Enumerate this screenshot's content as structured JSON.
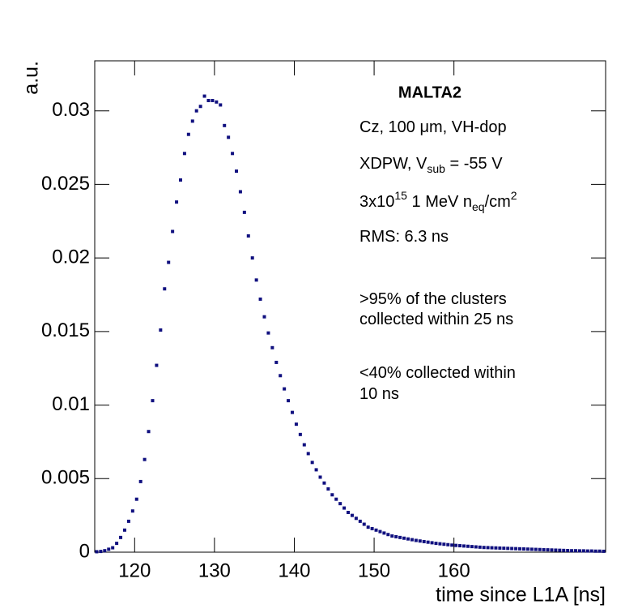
{
  "chart_data": {
    "type": "scatter",
    "x_label": "time since L1A [ns]",
    "y_label": "a.u.",
    "color": "#10107f",
    "xlim": [
      115,
      179
    ],
    "ylim": [
      0,
      0.0334
    ],
    "xticks": [
      120,
      130,
      140,
      150,
      160
    ],
    "yticks": [
      0,
      0.005,
      0.01,
      0.015,
      0.02,
      0.025,
      0.03
    ],
    "x": [
      115.25,
      115.75,
      116.25,
      116.75,
      117.25,
      117.75,
      118.25,
      118.75,
      119.25,
      119.75,
      120.25,
      120.75,
      121.25,
      121.75,
      122.25,
      122.75,
      123.25,
      123.75,
      124.25,
      124.75,
      125.25,
      125.75,
      126.25,
      126.75,
      127.25,
      127.75,
      128.25,
      128.75,
      129.25,
      129.75,
      130.25,
      130.75,
      131.25,
      131.75,
      132.25,
      132.75,
      133.25,
      133.75,
      134.25,
      134.75,
      135.25,
      135.75,
      136.25,
      136.75,
      137.25,
      137.75,
      138.25,
      138.75,
      139.25,
      139.75,
      140.25,
      140.75,
      141.25,
      141.75,
      142.25,
      142.75,
      143.25,
      143.75,
      144.25,
      144.75,
      145.25,
      145.75,
      146.25,
      146.75,
      147.25,
      147.75,
      148.25,
      148.75,
      149.25,
      149.75,
      150.25,
      150.75,
      151.25,
      151.75,
      152.25,
      152.75,
      153.25,
      153.75,
      154.25,
      154.75,
      155.25,
      155.75,
      156.25,
      156.75,
      157.25,
      157.75,
      158.25,
      158.75,
      159.25,
      159.75,
      160.25,
      160.75,
      161.25,
      161.75,
      162.25,
      162.75,
      163.25,
      163.75,
      164.25,
      164.75,
      165.25,
      165.75,
      166.25,
      166.75,
      167.25,
      167.75,
      168.25,
      168.75,
      169.25,
      169.75,
      170.25,
      170.75,
      171.25,
      171.75,
      172.25,
      172.75,
      173.25,
      173.75,
      174.25,
      174.75,
      175.25,
      175.75,
      176.25,
      176.75,
      177.25,
      177.75,
      178.25,
      178.75
    ],
    "values": [
      3e-05,
      5e-05,
      0.0001,
      0.0002,
      0.0003,
      0.0006,
      0.001,
      0.0015,
      0.0021,
      0.0028,
      0.0036,
      0.0048,
      0.0063,
      0.0082,
      0.0103,
      0.0127,
      0.0151,
      0.0179,
      0.0197,
      0.0218,
      0.0238,
      0.0253,
      0.0271,
      0.0284,
      0.0293,
      0.03,
      0.0303,
      0.031,
      0.0307,
      0.0307,
      0.0306,
      0.0304,
      0.029,
      0.0282,
      0.0271,
      0.0259,
      0.0245,
      0.0231,
      0.0215,
      0.02,
      0.0185,
      0.0172,
      0.016,
      0.0149,
      0.0139,
      0.0129,
      0.012,
      0.0111,
      0.0103,
      0.0095,
      0.0087,
      0.008,
      0.0073,
      0.0067,
      0.0061,
      0.0056,
      0.0051,
      0.0047,
      0.0043,
      0.0039,
      0.0036,
      0.0033,
      0.003,
      0.0027,
      0.0025,
      0.0023,
      0.0021,
      0.0019,
      0.0017,
      0.0016,
      0.0015,
      0.0014,
      0.0013,
      0.0012,
      0.0011,
      0.00105,
      0.001,
      0.00095,
      0.0009,
      0.00085,
      0.0008,
      0.00076,
      0.00072,
      0.00068,
      0.00064,
      0.0006,
      0.00057,
      0.00054,
      0.00051,
      0.00048,
      0.00046,
      0.00044,
      0.00042,
      0.0004,
      0.00038,
      0.00036,
      0.00034,
      0.00032,
      0.00031,
      0.0003,
      0.00029,
      0.00028,
      0.00027,
      0.00026,
      0.00025,
      0.00024,
      0.00023,
      0.00022,
      0.00021,
      0.0002,
      0.00019,
      0.00018,
      0.00017,
      0.00016,
      0.00015,
      0.00014,
      0.00013,
      0.00012,
      0.00011,
      0.0001,
      0.0001,
      9e-05,
      9e-05,
      8e-05,
      8e-05,
      7e-05,
      7e-05,
      6e-05
    ],
    "annotations": [
      {
        "text": "MALTA2",
        "bold": true
      },
      {
        "parts": [
          {
            "text": "Cz, 100 μm, VH-dop"
          }
        ]
      },
      {
        "parts": [
          {
            "text": "XDPW, V"
          },
          {
            "text": "sub",
            "shift": "sub"
          },
          {
            "text": " = -55 V"
          }
        ]
      },
      {
        "parts": [
          {
            "text": "3x10"
          },
          {
            "text": "15",
            "shift": "super"
          },
          {
            "text": " 1 MeV n"
          },
          {
            "text": "eq",
            "shift": "sub"
          },
          {
            "text": "/cm"
          },
          {
            "text": "2",
            "shift": "super"
          }
        ]
      },
      {
        "parts": [
          {
            "text": "RMS: 6.3 ns"
          }
        ]
      },
      {
        "parts": [
          {
            "text": ">95% of the clusters"
          }
        ]
      },
      {
        "parts": [
          {
            "text": "collected within 25 ns"
          }
        ]
      },
      {
        "parts": [
          {
            "text": "<40% collected within"
          }
        ]
      },
      {
        "parts": [
          {
            "text": "10 ns"
          }
        ]
      }
    ]
  }
}
